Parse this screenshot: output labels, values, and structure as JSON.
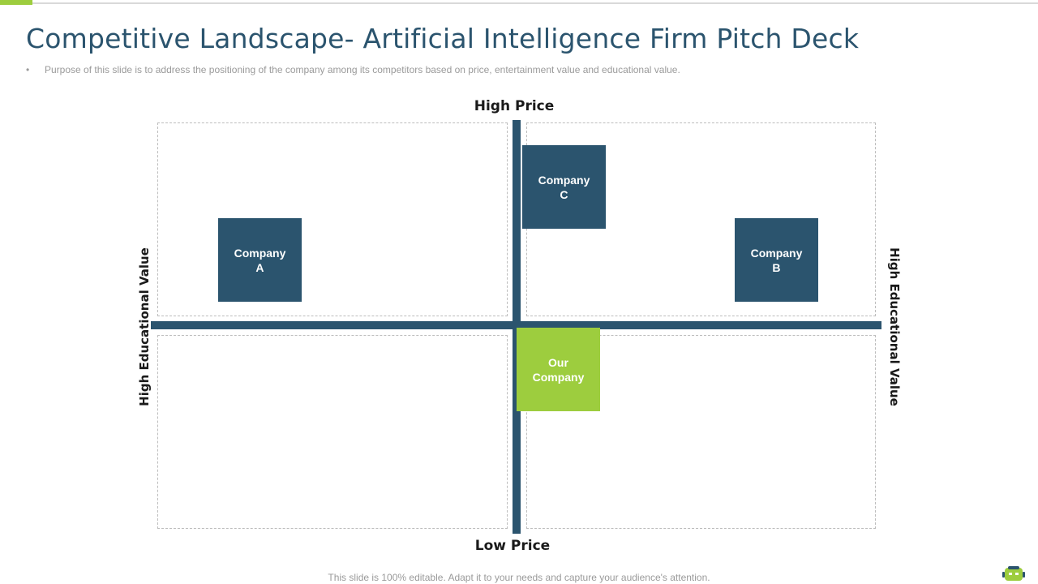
{
  "slide": {
    "title": "Competitive Landscape- Artificial Intelligence Firm Pitch Deck",
    "bullet": "Purpose of this slide is to address the positioning of the company among its competitors based on price, entertainment value  and educational value.",
    "footer": "This slide is 100% editable. Adapt it to your needs and capture your audience's attention."
  },
  "matrix": {
    "top_label": "High Price",
    "bottom_label": "Low Price",
    "left_label": "High Educational Value",
    "right_label": "High Educational Value"
  },
  "companies": {
    "a": {
      "line1": "Company",
      "line2": "A"
    },
    "b": {
      "line1": "Company",
      "line2": "B"
    },
    "c": {
      "line1": "Company",
      "line2": "C"
    },
    "ours": {
      "line1": "Our",
      "line2": "Company"
    }
  },
  "colors": {
    "navy": "#2b546e",
    "green": "#9dcd3e",
    "title": "#2b546e"
  },
  "icons": {
    "logo": "robot-logo-icon"
  }
}
